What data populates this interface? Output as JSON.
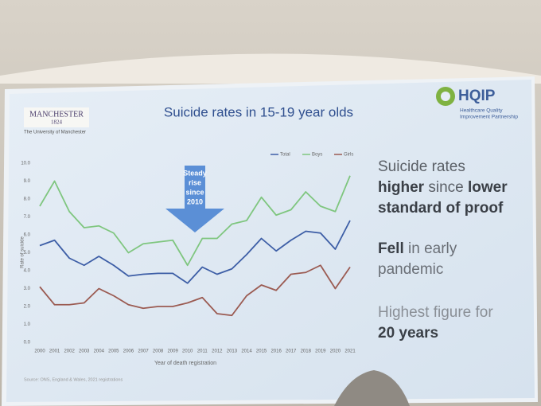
{
  "header": {
    "logo_left": "MANCHESTER",
    "logo_left_year": "1824",
    "logo_left_sub": "The University of Manchester",
    "logo_right": "HQIP",
    "logo_right_sub": [
      "Healthcare Quality",
      "Improvement Partnership"
    ]
  },
  "chart_data": {
    "type": "line",
    "title": "Suicide rates in 15-19 year olds",
    "y_label": "Rate of suicide",
    "x_label": "Year of death registration",
    "source": "Source: ONS, England & Wales, 2021 registrations",
    "annotation": [
      "Steady",
      "rise",
      "since",
      "2010"
    ],
    "categories": [
      "2000",
      "2001",
      "2002",
      "2003",
      "2004",
      "2005",
      "2006",
      "2007",
      "2008",
      "2009",
      "2010",
      "2011",
      "2012",
      "2013",
      "2014",
      "2015",
      "2016",
      "2017",
      "2018",
      "2019",
      "2020",
      "2021"
    ],
    "series": [
      {
        "name": "Total",
        "color": "#3d5ea6",
        "values": [
          5.4,
          5.7,
          4.7,
          4.3,
          4.8,
          4.3,
          3.7,
          3.8,
          3.85,
          3.85,
          3.3,
          4.2,
          3.8,
          4.1,
          4.9,
          5.8,
          5.1,
          5.7,
          6.2,
          6.1,
          5.2,
          6.8
        ]
      },
      {
        "name": "Boys",
        "color": "#7fc67f",
        "values": [
          7.6,
          9.0,
          7.3,
          6.4,
          6.5,
          6.1,
          5.0,
          5.5,
          5.6,
          5.7,
          4.3,
          5.8,
          5.8,
          6.6,
          6.8,
          8.1,
          7.1,
          7.4,
          8.4,
          7.6,
          7.3,
          9.3
        ]
      },
      {
        "name": "Girls",
        "color": "#9b5b52",
        "values": [
          3.1,
          2.1,
          2.1,
          2.2,
          3.0,
          2.6,
          2.1,
          1.9,
          2.0,
          2.0,
          2.2,
          2.5,
          1.6,
          1.5,
          2.6,
          3.2,
          2.9,
          3.8,
          3.9,
          4.3,
          3.0,
          4.2
        ]
      }
    ],
    "ylim": [
      0,
      10
    ],
    "yticks": [
      {
        "value": 0,
        "label": "0.0"
      },
      {
        "value": 1,
        "label": "1.0"
      },
      {
        "value": 2,
        "label": "2.0"
      },
      {
        "value": 3,
        "label": "3.0"
      },
      {
        "value": 4,
        "label": "4.0"
      },
      {
        "value": 5,
        "label": "5.0"
      },
      {
        "value": 6,
        "label": "6.0"
      },
      {
        "value": 7,
        "label": "7.0"
      },
      {
        "value": 8,
        "label": "8.0"
      },
      {
        "value": 9,
        "label": "9.0"
      },
      {
        "value": 10,
        "label": "10.0"
      }
    ],
    "grid": false,
    "legend": "top-right"
  },
  "notes": [
    {
      "color": "#5a5f66",
      "lines": [
        [
          {
            "text": "Suicide rates",
            "bold": false
          }
        ],
        [
          {
            "text": "higher",
            "bold": true
          },
          {
            "text": " since ",
            "bold": false
          },
          {
            "text": "lower",
            "bold": true
          }
        ],
        [
          {
            "text": "standard of proof",
            "bold": true
          }
        ]
      ]
    },
    {
      "color": "#6a6f76",
      "lines": [
        [
          {
            "text": "Fell",
            "bold": true
          },
          {
            "text": " in early",
            "bold": false
          }
        ],
        [
          {
            "text": "pandemic",
            "bold": false
          }
        ]
      ]
    },
    {
      "color": "#8a8f96",
      "lines": [
        [
          {
            "text": "Highest figure for",
            "bold": false
          }
        ],
        [
          {
            "text": "20 years",
            "bold": true
          }
        ]
      ]
    }
  ]
}
